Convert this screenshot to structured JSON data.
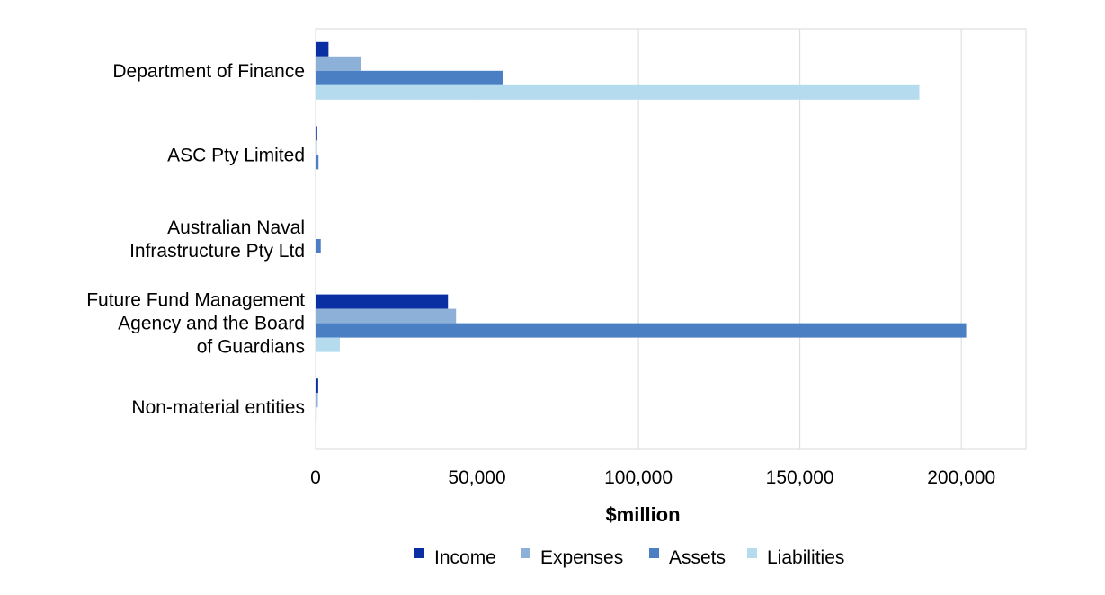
{
  "chart_data": {
    "type": "bar",
    "orientation": "horizontal",
    "categories": [
      [
        "Department of Finance"
      ],
      [
        "ASC Pty Limited"
      ],
      [
        "Australian Naval",
        "Infrastructure Pty Ltd"
      ],
      [
        "Future Fund Management",
        "Agency and the Board",
        "of Guardians"
      ],
      [
        "Non-material entities"
      ]
    ],
    "series": [
      {
        "name": "Income",
        "color": "#0a2fa3",
        "values": [
          4000,
          500,
          100,
          41000,
          800
        ]
      },
      {
        "name": "Expenses",
        "color": "#8db0d9",
        "values": [
          14000,
          400,
          150,
          43500,
          700
        ]
      },
      {
        "name": "Assets",
        "color": "#4a7fc4",
        "values": [
          58000,
          900,
          1600,
          201500,
          300
        ]
      },
      {
        "name": "Liabilities",
        "color": "#b4dbee",
        "values": [
          187000,
          200,
          100,
          7500,
          200
        ]
      }
    ],
    "xlabel": "$million",
    "xticks": [
      "0",
      "50,000",
      "100,000",
      "150,000",
      "200,000"
    ],
    "xtick_values": [
      0,
      50000,
      100000,
      150000,
      200000
    ],
    "xlim": [
      0,
      220000
    ],
    "grid": true,
    "legend_position": "bottom"
  }
}
